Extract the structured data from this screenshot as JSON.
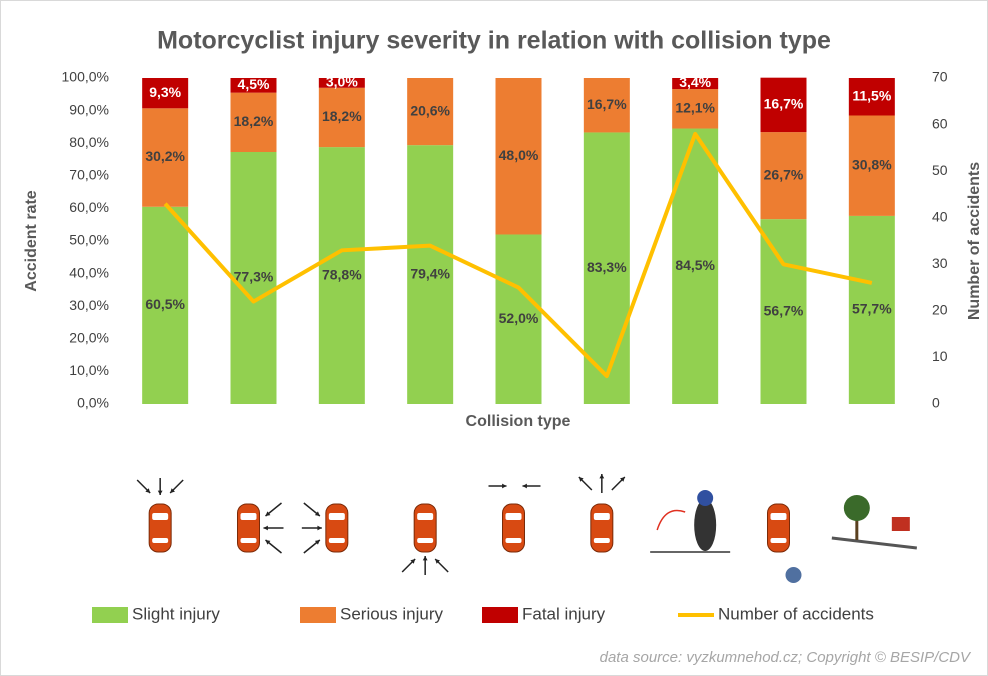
{
  "chart_data": {
    "type": "bar",
    "title": "Motorcyclist injury severity in relation with collision type",
    "ylabel": "Accident rate",
    "y2label": "Number of accidents",
    "xlabel": "Collision type",
    "source": "data source: vyzkumnehod.cz; Copyright © BESIP/CDV",
    "stacked": true,
    "categories": [
      null,
      null,
      null,
      null,
      null,
      null,
      null,
      null,
      null
    ],
    "series": [
      {
        "name": "Slight injury",
        "color": "#92d050",
        "values": [
          60.5,
          77.3,
          78.8,
          79.4,
          52.0,
          83.3,
          84.5,
          56.7,
          57.7
        ],
        "value_labels": [
          "60,5%",
          "77,3%",
          "78,8%",
          "79,4%",
          "52,0%",
          "83,3%",
          "84,5%",
          "56,7%",
          "57,7%"
        ]
      },
      {
        "name": "Serious injury",
        "color": "#ed7d31",
        "values": [
          30.2,
          18.2,
          18.2,
          20.6,
          48.0,
          16.7,
          12.1,
          26.7,
          30.8
        ],
        "value_labels": [
          "30,2%",
          "18,2%",
          "18,2%",
          "20,6%",
          "48,0%",
          "16,7%",
          "12,1%",
          "26,7%",
          "30,8%"
        ]
      },
      {
        "name": "Fatal injury",
        "color": "#c00000",
        "values": [
          9.3,
          4.5,
          3.0,
          null,
          null,
          null,
          3.4,
          16.7,
          11.5
        ],
        "value_labels": [
          "9,3%",
          "4,5%",
          "3,0%",
          null,
          null,
          null,
          "3,4%",
          "16,7%",
          "11,5%"
        ]
      },
      {
        "name": "Number of accidents",
        "color": "#ffc000",
        "type": "line",
        "axis": "y2",
        "values": [
          43,
          22,
          33,
          34,
          25,
          6,
          58,
          30,
          26
        ]
      }
    ],
    "ylim": [
      0,
      100
    ],
    "yticks": [
      {
        "value": 0,
        "label": "0,0%"
      },
      {
        "value": 10,
        "label": "10,0%"
      },
      {
        "value": 20,
        "label": "20,0%"
      },
      {
        "value": 30,
        "label": "30,0%"
      },
      {
        "value": 40,
        "label": "40,0%"
      },
      {
        "value": 50,
        "label": "50,0%"
      },
      {
        "value": 60,
        "label": "60,0%"
      },
      {
        "value": 70,
        "label": "70,0%"
      },
      {
        "value": 80,
        "label": "80,0%"
      },
      {
        "value": 90,
        "label": "90,0%"
      },
      {
        "value": 100,
        "label": "100,0%"
      }
    ],
    "y2lim": [
      0,
      70
    ],
    "y2ticks": [
      0,
      10,
      20,
      30,
      40,
      50,
      60,
      70
    ],
    "legend": "bottom"
  }
}
